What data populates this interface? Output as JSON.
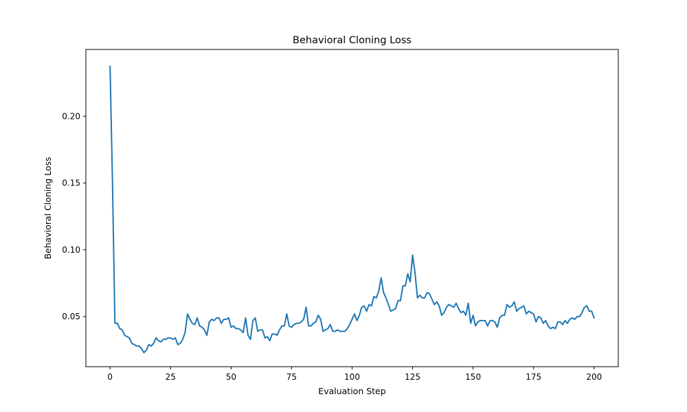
{
  "chart_data": {
    "type": "line",
    "title": "Behavioral Cloning Loss",
    "xlabel": "Evaluation Step",
    "ylabel": "Behavioral Cloning Loss",
    "xlim": [
      -10,
      210
    ],
    "ylim": [
      0.0125,
      0.25
    ],
    "xticks": [
      0,
      25,
      50,
      75,
      100,
      125,
      150,
      175,
      200
    ],
    "xtick_labels": [
      "0",
      "25",
      "50",
      "75",
      "100",
      "125",
      "150",
      "175",
      "200"
    ],
    "yticks": [
      0.05,
      0.1,
      0.15,
      0.2
    ],
    "ytick_labels": [
      "0.05",
      "0.10",
      "0.15",
      "0.20"
    ],
    "grid": false,
    "series": [
      {
        "color": "#1f77b4",
        "y": [
          0.2375,
          0.15,
          0.045,
          0.045,
          0.041,
          0.04,
          0.036,
          0.035,
          0.034,
          0.03,
          0.029,
          0.028,
          0.028,
          0.026,
          0.023,
          0.025,
          0.029,
          0.028,
          0.03,
          0.034,
          0.032,
          0.031,
          0.033,
          0.033,
          0.034,
          0.034,
          0.033,
          0.034,
          0.029,
          0.03,
          0.033,
          0.038,
          0.052,
          0.048,
          0.045,
          0.044,
          0.049,
          0.043,
          0.042,
          0.04,
          0.036,
          0.046,
          0.048,
          0.047,
          0.049,
          0.049,
          0.045,
          0.048,
          0.048,
          0.049,
          0.042,
          0.043,
          0.041,
          0.041,
          0.04,
          0.038,
          0.049,
          0.036,
          0.033,
          0.047,
          0.049,
          0.039,
          0.04,
          0.04,
          0.034,
          0.035,
          0.032,
          0.037,
          0.037,
          0.036,
          0.04,
          0.043,
          0.043,
          0.052,
          0.043,
          0.042,
          0.044,
          0.045,
          0.045,
          0.046,
          0.048,
          0.057,
          0.043,
          0.043,
          0.045,
          0.046,
          0.051,
          0.048,
          0.039,
          0.04,
          0.041,
          0.044,
          0.039,
          0.039,
          0.04,
          0.039,
          0.039,
          0.039,
          0.041,
          0.044,
          0.048,
          0.052,
          0.047,
          0.051,
          0.057,
          0.058,
          0.054,
          0.059,
          0.058,
          0.065,
          0.064,
          0.069,
          0.079,
          0.068,
          0.064,
          0.059,
          0.054,
          0.055,
          0.056,
          0.062,
          0.062,
          0.073,
          0.073,
          0.082,
          0.076,
          0.096,
          0.083,
          0.064,
          0.066,
          0.064,
          0.064,
          0.068,
          0.067,
          0.063,
          0.059,
          0.061,
          0.058,
          0.051,
          0.053,
          0.057,
          0.059,
          0.058,
          0.057,
          0.06,
          0.056,
          0.053,
          0.054,
          0.051,
          0.06,
          0.045,
          0.051,
          0.043,
          0.046,
          0.047,
          0.047,
          0.047,
          0.043,
          0.047,
          0.047,
          0.046,
          0.042,
          0.049,
          0.051,
          0.051,
          0.059,
          0.057,
          0.058,
          0.061,
          0.054,
          0.056,
          0.057,
          0.058,
          0.052,
          0.054,
          0.053,
          0.052,
          0.046,
          0.05,
          0.049,
          0.045,
          0.047,
          0.043,
          0.041,
          0.042,
          0.041,
          0.046,
          0.046,
          0.044,
          0.047,
          0.045,
          0.048,
          0.049,
          0.048,
          0.05,
          0.05,
          0.053,
          0.057,
          0.058,
          0.054,
          0.054,
          0.049
        ]
      }
    ]
  }
}
